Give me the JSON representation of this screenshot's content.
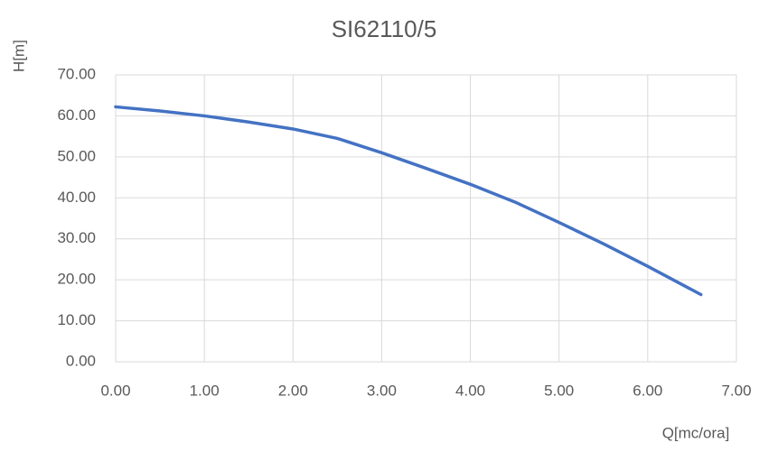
{
  "chart_data": {
    "type": "line",
    "title": "SI62110/5",
    "x_label": "Q[mc/ora]",
    "y_label": "H[m]",
    "x": [
      0,
      0.5,
      1.0,
      1.5,
      2.0,
      2.5,
      3.0,
      3.5,
      4.0,
      4.5,
      5.0,
      5.5,
      6.0,
      6.6
    ],
    "series": [
      {
        "name": "H",
        "color": "#4472c4",
        "values": [
          62.2,
          61.2,
          60.0,
          58.5,
          56.8,
          54.5,
          51.0,
          47.2,
          43.3,
          39.0,
          34.0,
          28.8,
          23.3,
          16.4
        ]
      }
    ],
    "xlim": [
      0,
      7
    ],
    "ylim": [
      0,
      70
    ],
    "xticks": [
      {
        "value": 0,
        "label": "0.00"
      },
      {
        "value": 1,
        "label": "1.00"
      },
      {
        "value": 2,
        "label": "2.00"
      },
      {
        "value": 3,
        "label": "3.00"
      },
      {
        "value": 4,
        "label": "4.00"
      },
      {
        "value": 5,
        "label": "5.00"
      },
      {
        "value": 6,
        "label": "6.00"
      },
      {
        "value": 7,
        "label": "7.00"
      }
    ],
    "yticks": [
      {
        "value": 0,
        "label": "0.00"
      },
      {
        "value": 10,
        "label": "10.00"
      },
      {
        "value": 20,
        "label": "20.00"
      },
      {
        "value": 30,
        "label": "30.00"
      },
      {
        "value": 40,
        "label": "40.00"
      },
      {
        "value": 50,
        "label": "50.00"
      },
      {
        "value": 60,
        "label": "60.00"
      },
      {
        "value": 70,
        "label": "70.00"
      }
    ],
    "grid": true
  }
}
